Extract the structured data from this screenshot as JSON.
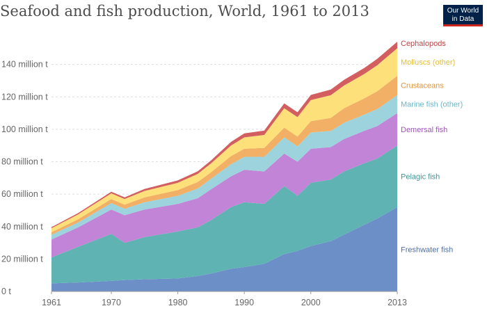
{
  "header": {
    "title": "Seafood and fish production, World, 1961 to 2013",
    "logo_line1": "Our World",
    "logo_line2": "in Data"
  },
  "chart_data": {
    "type": "area",
    "stacked": true,
    "title": "Seafood and fish production, World, 1961 to 2013",
    "xlabel": "",
    "ylabel": "",
    "xlim": [
      1961,
      2013
    ],
    "ylim": [
      0,
      160
    ],
    "x_ticks": [
      1961,
      1970,
      1980,
      1990,
      2000,
      2013
    ],
    "y_ticks": [
      0,
      20,
      40,
      60,
      80,
      100,
      120,
      140
    ],
    "y_tick_labels": [
      "0 t",
      "20 million t",
      "40 million t",
      "60 million t",
      "80 million t",
      "100 million t",
      "120 million t",
      "140 million t"
    ],
    "grid": "horizontal-dashed",
    "legend": "right-inline",
    "x": [
      1961,
      1965,
      1970,
      1972,
      1975,
      1980,
      1983,
      1985,
      1988,
      1990,
      1993,
      1996,
      1998,
      2000,
      2003,
      2005,
      2008,
      2010,
      2013
    ],
    "series": [
      {
        "name": "Freshwater fish",
        "color": "#6d8fc7",
        "values": [
          5,
          5.5,
          6.5,
          7,
          7.5,
          8,
          9.5,
          11,
          14,
          15,
          17,
          23,
          25,
          28,
          31,
          35,
          41,
          45,
          52
        ]
      },
      {
        "name": "Pelagic fish",
        "color": "#5fb3b3",
        "values": [
          16,
          22,
          29,
          23,
          26,
          29,
          30,
          33,
          38,
          40,
          37,
          42,
          34,
          39,
          38,
          39,
          38,
          37,
          38
        ]
      },
      {
        "name": "Demersal fish",
        "color": "#c184d6",
        "values": [
          11,
          12,
          15,
          17,
          17,
          17,
          18,
          19,
          19,
          20,
          20,
          20,
          21,
          21,
          20,
          20,
          20,
          20,
          20
        ]
      },
      {
        "name": "Marine fish (other)",
        "color": "#9dd3dc",
        "values": [
          3,
          3,
          4,
          4,
          4.5,
          5,
          6,
          6.5,
          7.5,
          8,
          9,
          10,
          9.5,
          10,
          10,
          10,
          10,
          10.5,
          11
        ]
      },
      {
        "name": "Crustaceans",
        "color": "#f2b066",
        "values": [
          1.5,
          2,
          2.5,
          2.5,
          3,
          3.5,
          4,
          4,
          5,
          5,
          5.5,
          6,
          6,
          7,
          8,
          9,
          10,
          11,
          12
        ]
      },
      {
        "name": "Molluscs (other)",
        "color": "#fde07a",
        "values": [
          2.5,
          3,
          3.5,
          3.5,
          4,
          4.5,
          5,
          5.5,
          6.5,
          7,
          8,
          12,
          12,
          13,
          14,
          14,
          15,
          16,
          17
        ]
      },
      {
        "name": "Cephalopods",
        "color": "#d35e60",
        "values": [
          0.6,
          0.8,
          1,
          1,
          1.2,
          1.5,
          1.6,
          1.8,
          2.2,
          2.5,
          2.7,
          3,
          3,
          3.2,
          3.5,
          3.5,
          3.7,
          4,
          4
        ]
      }
    ]
  }
}
